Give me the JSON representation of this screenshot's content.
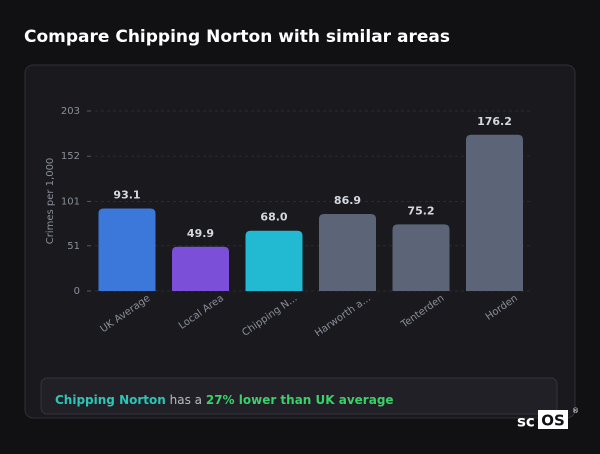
{
  "header": {
    "title": "Compare Chipping Norton with similar areas"
  },
  "chart_data": {
    "type": "bar",
    "y_label": "Crimes per 1,000",
    "categories": [
      "UK Average",
      "Local Area",
      "Chipping N...",
      "Harworth a...",
      "Tenterden",
      "Horden"
    ],
    "values": [
      93.1,
      49.9,
      68.0,
      86.9,
      75.2,
      176.2
    ],
    "value_labels": [
      "93.1",
      "49.9",
      "68.0",
      "86.9",
      "75.2",
      "176.2"
    ],
    "colors": [
      "#3b78d9",
      "#7b4fd8",
      "#22b9d2",
      "#5b6577",
      "#5b6577",
      "#5b6577"
    ],
    "ylim": [
      0,
      203
    ],
    "yticks": [
      0,
      51,
      101,
      152,
      203
    ],
    "grid": true
  },
  "summary": {
    "place": "Chipping Norton",
    "middle": "has a",
    "comparison": "27% lower than UK average"
  },
  "logo": {
    "part1": "sc",
    "part2": "OS",
    "mark": "®"
  }
}
